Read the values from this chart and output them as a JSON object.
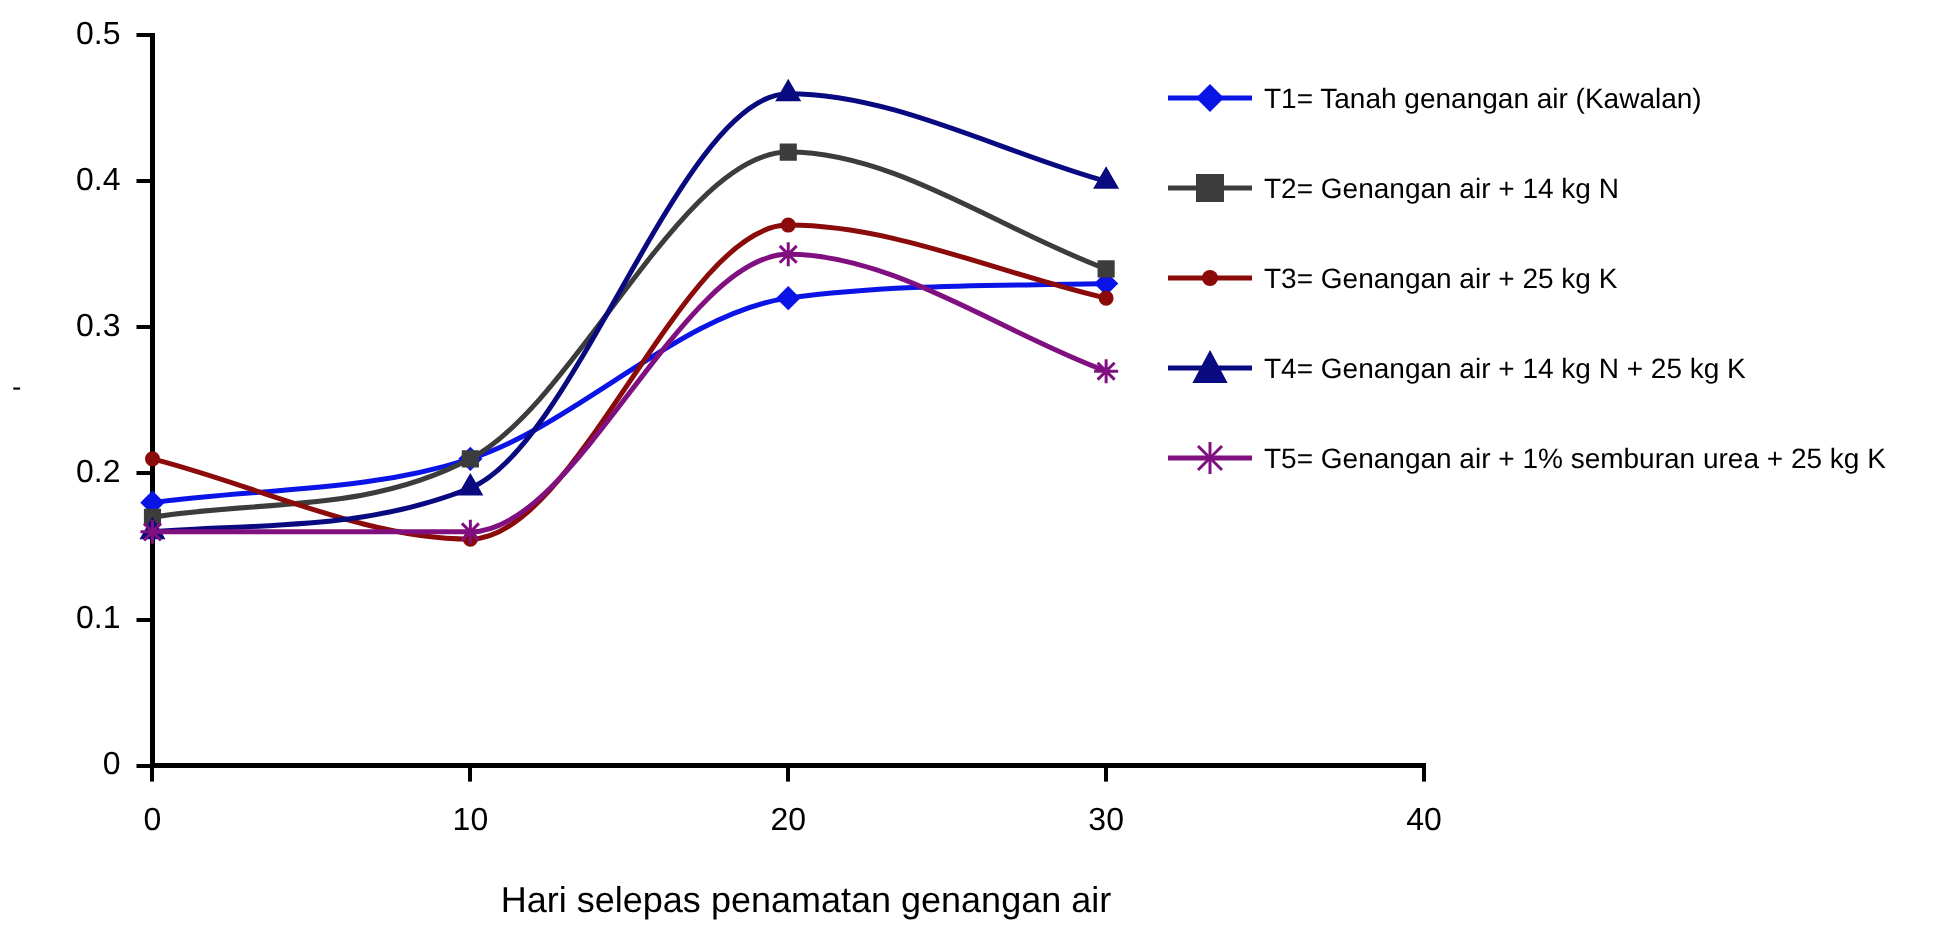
{
  "chart_data": {
    "type": "line",
    "xlabel": "Hari selepas penamatan genangan air",
    "ylabel": "-",
    "x": [
      0,
      10,
      20,
      30
    ],
    "xlim": [
      0,
      40
    ],
    "xticks": [
      0,
      10,
      20,
      30,
      40
    ],
    "ylim": [
      0,
      0.5
    ],
    "yticks": [
      0,
      0.1,
      0.2,
      0.3,
      0.4,
      0.5
    ],
    "grid": false,
    "legend": "right",
    "line_style": "solid",
    "series": [
      {
        "name": "T1= Tanah genangan air (Kawalan)",
        "color": "#0a14e6",
        "marker": "diamond",
        "values": [
          0.18,
          0.21,
          0.32,
          0.33
        ]
      },
      {
        "name": "T2= Genangan air + 14 kg N",
        "color": "#3c3c3c",
        "marker": "square",
        "values": [
          0.17,
          0.21,
          0.42,
          0.34
        ]
      },
      {
        "name": "T3= Genangan air + 25 kg K",
        "color": "#8b0a0a",
        "marker": "circle",
        "values": [
          0.21,
          0.155,
          0.37,
          0.32
        ]
      },
      {
        "name": "T4= Genangan air + 14 kg N + 25 kg K",
        "color": "#0a0a80",
        "marker": "triangle",
        "values": [
          0.16,
          0.19,
          0.46,
          0.4
        ]
      },
      {
        "name": "T5= Genangan air + 1% semburan urea + 25 kg K",
        "color": "#801080",
        "marker": "cross",
        "values": [
          0.16,
          0.16,
          0.35,
          0.27
        ]
      }
    ]
  }
}
